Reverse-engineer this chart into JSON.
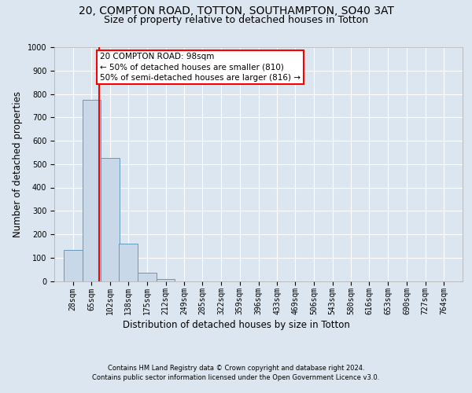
{
  "title_line1": "20, COMPTON ROAD, TOTTON, SOUTHAMPTON, SO40 3AT",
  "title_line2": "Size of property relative to detached houses in Totton",
  "xlabel": "Distribution of detached houses by size in Totton",
  "ylabel": "Number of detached properties",
  "footer_line1": "Contains HM Land Registry data © Crown copyright and database right 2024.",
  "footer_line2": "Contains public sector information licensed under the Open Government Licence v3.0.",
  "bin_labels": [
    "28sqm",
    "65sqm",
    "102sqm",
    "138sqm",
    "175sqm",
    "212sqm",
    "249sqm",
    "285sqm",
    "322sqm",
    "359sqm",
    "396sqm",
    "433sqm",
    "469sqm",
    "506sqm",
    "543sqm",
    "580sqm",
    "616sqm",
    "653sqm",
    "690sqm",
    "727sqm",
    "764sqm"
  ],
  "bar_heights": [
    133,
    775,
    525,
    158,
    35,
    10,
    0,
    0,
    0,
    0,
    0,
    0,
    0,
    0,
    0,
    0,
    0,
    0,
    0,
    0,
    0
  ],
  "bar_color": "#c8d8e8",
  "bar_edge_color": "#6699bb",
  "property_line_x": 98,
  "property_line_label": "20 COMPTON ROAD: 98sqm",
  "annotation_line1": "← 50% of detached houses are smaller (810)",
  "annotation_line2": "50% of semi-detached houses are larger (816) →",
  "annotation_box_color": "white",
  "annotation_box_edge_color": "red",
  "vline_color": "red",
  "ylim": [
    0,
    1000
  ],
  "bin_width": 37,
  "background_color": "#dce6f0",
  "plot_background_color": "#dce6f0",
  "grid_color": "white",
  "title_fontsize": 10,
  "subtitle_fontsize": 9,
  "axis_label_fontsize": 8.5,
  "tick_fontsize": 7,
  "footer_fontsize": 6,
  "annotation_fontsize": 7.5
}
